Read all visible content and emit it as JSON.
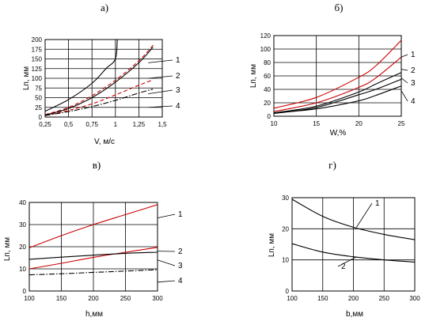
{
  "chart_data": [
    {
      "panel": "а)",
      "type": "line",
      "xlabel": "V, м/с",
      "ylabel": "Lп, мм",
      "xlim": [
        0.25,
        1.5
      ],
      "ylim": [
        0,
        200
      ],
      "xticks": [
        "0,25",
        "0,5",
        "0,75",
        "1",
        "1,25",
        "1,5"
      ],
      "yticks": [
        "0",
        "25",
        "50",
        "75",
        "100",
        "125",
        "150",
        "175",
        "200"
      ],
      "series": [
        {
          "name": "1",
          "color": "#000000",
          "dash": "solid",
          "points": [
            [
              0.25,
              15
            ],
            [
              0.5,
              45
            ],
            [
              0.75,
              87
            ],
            [
              0.9,
              125
            ],
            [
              1.0,
              150
            ],
            [
              1.02,
              200
            ]
          ]
        },
        {
          "name": "2",
          "color": "#cc0000",
          "dash": "dash",
          "points": [
            [
              0.25,
              6
            ],
            [
              0.5,
              25
            ],
            [
              0.75,
              55
            ],
            [
              1.0,
              95
            ],
            [
              1.25,
              145
            ],
            [
              1.42,
              190
            ]
          ]
        },
        {
          "name": "2",
          "color": "#000000",
          "dash": "solid",
          "points": [
            [
              0.25,
              5
            ],
            [
              0.5,
              22
            ],
            [
              0.75,
              50
            ],
            [
              1.0,
              90
            ],
            [
              1.25,
              140
            ],
            [
              1.4,
              180
            ]
          ]
        },
        {
          "name": "3",
          "color": "#cc0000",
          "dash": "dash",
          "points": [
            [
              0.25,
              4
            ],
            [
              0.5,
              17
            ],
            [
              0.75,
              34
            ],
            [
              1.0,
              57
            ],
            [
              1.25,
              82
            ],
            [
              1.4,
              96
            ]
          ]
        },
        {
          "name": "4",
          "color": "#000000",
          "dash": "dashdot",
          "points": [
            [
              0.25,
              4
            ],
            [
              0.5,
              14
            ],
            [
              0.75,
              27
            ],
            [
              1.0,
              43
            ],
            [
              1.25,
              62
            ],
            [
              1.4,
              72
            ]
          ]
        }
      ],
      "curve_labels": [
        {
          "text": "1",
          "x": 1.35,
          "y": 140
        },
        {
          "text": "2",
          "x": 1.35,
          "y": 100
        },
        {
          "text": "3",
          "x": 1.35,
          "y": 60
        },
        {
          "text": "4",
          "x": 1.35,
          "y": 25
        }
      ]
    },
    {
      "panel": "б)",
      "type": "line",
      "xlabel": "W,%",
      "ylabel": "Lп, мм",
      "xlim": [
        10,
        25
      ],
      "ylim": [
        0,
        120
      ],
      "xticks": [
        "10",
        "15",
        "20",
        "25"
      ],
      "yticks": [
        "0",
        "20",
        "40",
        "60",
        "80",
        "100",
        "120"
      ],
      "series": [
        {
          "name": "1",
          "color": "#cc0000",
          "dash": "solid",
          "points": [
            [
              10,
              12
            ],
            [
              15,
              28
            ],
            [
              20,
              58
            ],
            [
              22,
              75
            ],
            [
              25,
              113
            ]
          ]
        },
        {
          "name": "2",
          "color": "#cc0000",
          "dash": "solid",
          "points": [
            [
              10,
              7
            ],
            [
              15,
              20
            ],
            [
              20,
              43
            ],
            [
              22,
              57
            ],
            [
              25,
              88
            ]
          ]
        },
        {
          "name": "3",
          "color": "#000000",
          "dash": "solid",
          "points": [
            [
              10,
              4
            ],
            [
              15,
              13
            ],
            [
              20,
              32
            ],
            [
              22,
              40
            ],
            [
              25,
              55
            ]
          ]
        },
        {
          "name": "3",
          "color": "#000000",
          "dash": "solid",
          "points": [
            [
              10,
              5
            ],
            [
              15,
              15
            ],
            [
              20,
              36
            ],
            [
              22,
              48
            ],
            [
              25,
              65
            ]
          ]
        },
        {
          "name": "4",
          "color": "#000000",
          "dash": "solid",
          "points": [
            [
              10,
              5
            ],
            [
              15,
              11
            ],
            [
              20,
              23
            ],
            [
              22,
              31
            ],
            [
              25,
              45
            ]
          ]
        }
      ],
      "curve_labels": [
        {
          "text": "1",
          "x": 25,
          "y": 88
        },
        {
          "text": "2",
          "x": 25,
          "y": 70
        },
        {
          "text": "3",
          "x": 25,
          "y": 57
        },
        {
          "text": "4",
          "x": 25,
          "y": 38
        }
      ]
    },
    {
      "panel": "в)",
      "type": "line",
      "xlabel": "h,мм",
      "ylabel": "Lп, мм",
      "xlim": [
        100,
        300
      ],
      "ylim": [
        0,
        40
      ],
      "xticks": [
        "100",
        "150",
        "200",
        "250",
        "300"
      ],
      "yticks": [
        "0",
        "10",
        "20",
        "30",
        "40"
      ],
      "series": [
        {
          "name": "1",
          "color": "#cc0000",
          "dash": "solid",
          "points": [
            [
              100,
              19.5
            ],
            [
              150,
              25
            ],
            [
              200,
              30
            ],
            [
              250,
              34.5
            ],
            [
              300,
              39
            ]
          ]
        },
        {
          "name": "2",
          "color": "#cc0000",
          "dash": "solid",
          "points": [
            [
              100,
              10
            ],
            [
              150,
              12.5
            ],
            [
              200,
              15.2
            ],
            [
              250,
              17.5
            ],
            [
              300,
              19.7
            ]
          ]
        },
        {
          "name": "3",
          "color": "#000000",
          "dash": "solid",
          "points": [
            [
              100,
              14.3
            ],
            [
              150,
              15.3
            ],
            [
              200,
              16.2
            ],
            [
              250,
              17
            ],
            [
              300,
              17.5
            ]
          ]
        },
        {
          "name": "4",
          "color": "#000000",
          "dash": "dashdot",
          "points": [
            [
              100,
              7.3
            ],
            [
              150,
              7.8
            ],
            [
              200,
              8.4
            ],
            [
              250,
              9.0
            ],
            [
              300,
              9.6
            ]
          ]
        }
      ],
      "curve_labels": [
        {
          "text": "1",
          "x": 300,
          "y": 33
        },
        {
          "text": "2",
          "x": 300,
          "y": 18
        },
        {
          "text": "3",
          "x": 300,
          "y": 14
        },
        {
          "text": "4",
          "x": 300,
          "y": 4
        }
      ]
    },
    {
      "panel": "г)",
      "type": "line",
      "xlabel": "b,мм",
      "ylabel": "Lп, мм",
      "xlim": [
        100,
        300
      ],
      "ylim": [
        0,
        30
      ],
      "xticks": [
        "100",
        "150",
        "200",
        "250",
        "300"
      ],
      "yticks": [
        "0",
        "10",
        "20",
        "30"
      ],
      "series": [
        {
          "name": "1",
          "color": "#000000",
          "dash": "solid",
          "points": [
            [
              100,
              29.5
            ],
            [
              150,
              24
            ],
            [
              200,
              20.5
            ],
            [
              250,
              18.2
            ],
            [
              300,
              16.5
            ]
          ]
        },
        {
          "name": "2",
          "color": "#000000",
          "dash": "solid",
          "points": [
            [
              100,
              15.2
            ],
            [
              150,
              12.5
            ],
            [
              200,
              11
            ],
            [
              250,
              10
            ],
            [
              300,
              9.3
            ]
          ]
        }
      ],
      "curve_labels": [
        {
          "text": "1",
          "x": 205,
          "y": 20.5
        },
        {
          "text": "2",
          "x": 205,
          "y": 11
        }
      ]
    }
  ]
}
